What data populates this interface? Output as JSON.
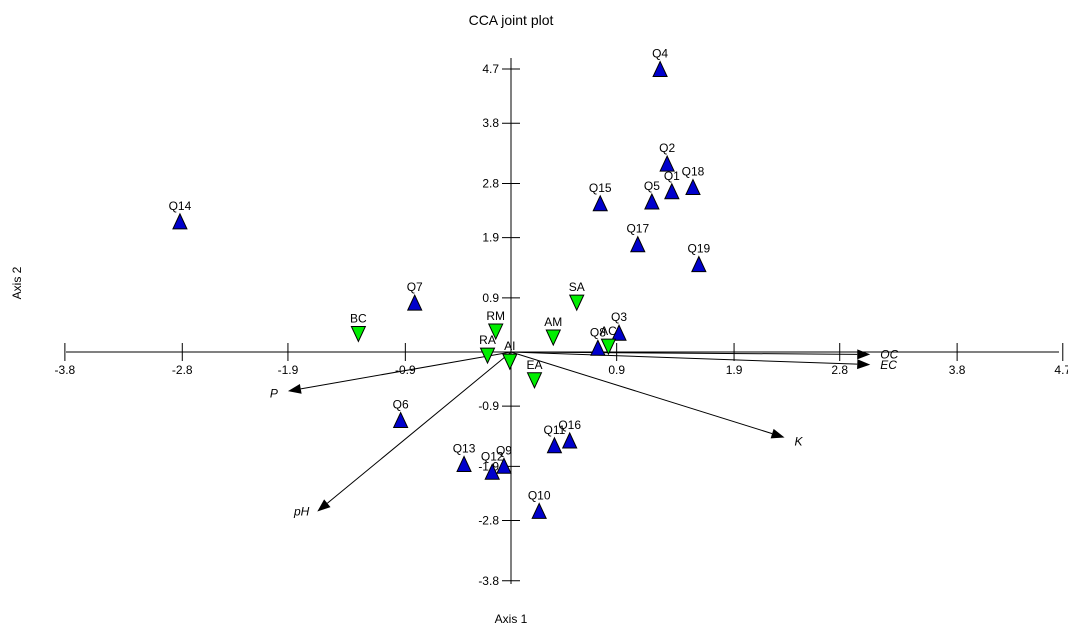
{
  "chart_data": {
    "type": "scatter",
    "title": "CCA joint plot",
    "xlabel": "Axis 1",
    "ylabel": "Axis 2",
    "xlim": [
      -3.8,
      4.7
    ],
    "ylim": [
      -3.8,
      4.7
    ],
    "x_ticks": [
      "-3.8",
      "-2.8",
      "-1.9",
      "-0.9",
      "0.9",
      "1.9",
      "2.8",
      "3.8",
      "4.7"
    ],
    "y_ticks": [
      "4.7",
      "3.8",
      "2.8",
      "1.9",
      "0.9",
      "-0.9",
      "-1.9",
      "-2.8",
      "-3.8"
    ],
    "colors": {
      "samples": "#0000cc",
      "species": "#00ee00",
      "outline": "#000000"
    },
    "series": [
      {
        "name": "",
        "marker": "triangle-up",
        "points": [
          {
            "label": "Q4",
            "x": 1.27,
            "y": 4.7
          },
          {
            "label": "Q2",
            "x": 1.33,
            "y": 3.13
          },
          {
            "label": "Q1",
            "x": 1.37,
            "y": 2.67
          },
          {
            "label": "Q18",
            "x": 1.55,
            "y": 2.74
          },
          {
            "label": "Q5",
            "x": 1.2,
            "y": 2.5
          },
          {
            "label": "Q15",
            "x": 0.76,
            "y": 2.47
          },
          {
            "label": "Q17",
            "x": 1.08,
            "y": 1.79
          },
          {
            "label": "Q19",
            "x": 1.6,
            "y": 1.46
          },
          {
            "label": "Q14",
            "x": -2.82,
            "y": 2.17
          },
          {
            "label": "Q7",
            "x": -0.82,
            "y": 0.82
          },
          {
            "label": "Q3",
            "x": 0.92,
            "y": 0.32
          },
          {
            "label": "Q8",
            "x": 0.74,
            "y": 0.07
          },
          {
            "label": "Q6",
            "x": -0.94,
            "y": -1.13
          },
          {
            "label": "Q11",
            "x": 0.37,
            "y": -1.55
          },
          {
            "label": "Q16",
            "x": 0.5,
            "y": -1.47
          },
          {
            "label": "Q13",
            "x": -0.4,
            "y": -1.86
          },
          {
            "label": "Q12",
            "x": -0.16,
            "y": -1.99
          },
          {
            "label": "Q9",
            "x": -0.06,
            "y": -1.89
          },
          {
            "label": "Q10",
            "x": 0.24,
            "y": -2.64
          }
        ]
      },
      {
        "name": "",
        "marker": "triangle-down",
        "points": [
          {
            "label": "SA",
            "x": 0.56,
            "y": 0.82
          },
          {
            "label": "AM",
            "x": 0.36,
            "y": 0.24
          },
          {
            "label": "AC",
            "x": 0.83,
            "y": 0.09
          },
          {
            "label": "BC",
            "x": -1.3,
            "y": 0.3
          },
          {
            "label": "RM",
            "x": -0.13,
            "y": 0.34
          },
          {
            "label": "RA",
            "x": -0.2,
            "y": -0.06
          },
          {
            "label": "AI",
            "x": -0.01,
            "y": -0.16
          },
          {
            "label": "EA",
            "x": 0.2,
            "y": -0.47
          }
        ]
      }
    ],
    "vectors": [
      {
        "label": "OC",
        "x": 3.06,
        "y": -0.04
      },
      {
        "label": "EC",
        "x": 3.06,
        "y": -0.21
      },
      {
        "label": "K",
        "x": 2.33,
        "y": -1.42
      },
      {
        "label": "P",
        "x": -1.9,
        "y": -0.65
      },
      {
        "label": "pH",
        "x": -1.65,
        "y": -2.65
      }
    ]
  }
}
